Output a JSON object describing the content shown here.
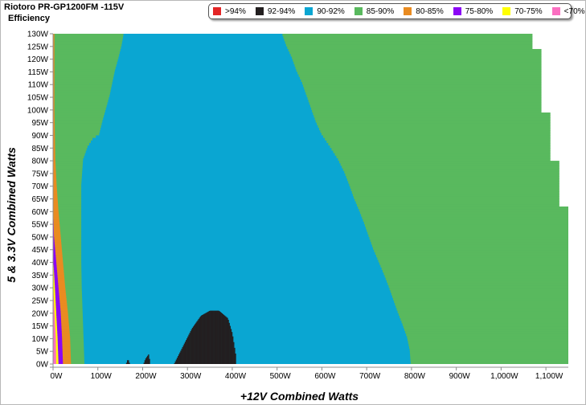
{
  "title": "Riotoro PR-GP1200FM -115V",
  "subtitle": "Efficiency",
  "legend": [
    {
      "label": ">94%",
      "color": "#e32526"
    },
    {
      "label": "92-94%",
      "color": "#231f20"
    },
    {
      "label": "90-92%",
      "color": "#0aa6d2"
    },
    {
      "label": "85-90%",
      "color": "#59b95e"
    },
    {
      "label": "80-85%",
      "color": "#e98b21"
    },
    {
      "label": "75-80%",
      "color": "#8b06f5"
    },
    {
      "label": "70-75%",
      "color": "#ffff00"
    },
    {
      "label": "<70%",
      "color": "#fb6fc1"
    }
  ],
  "chart_data": {
    "type": "heatmap",
    "title": "Riotoro PR-GP1200FM -115V",
    "subtitle": "Efficiency",
    "xlabel": "+12V Combined Watts",
    "ylabel": "5 & 3.3V Combined Watts",
    "xlim": [
      0,
      1150
    ],
    "ylim": [
      0,
      130
    ],
    "x_ticks": [
      "0W",
      "100W",
      "200W",
      "300W",
      "400W",
      "500W",
      "600W",
      "700W",
      "800W",
      "900W",
      "1,000W",
      "1,100W"
    ],
    "y_ticks": [
      "0W",
      "5W",
      "10W",
      "15W",
      "20W",
      "25W",
      "30W",
      "35W",
      "40W",
      "45W",
      "50W",
      "55W",
      "60W",
      "65W",
      "70W",
      "75W",
      "80W",
      "85W",
      "90W",
      "95W",
      "100W",
      "105W",
      "110W",
      "115W",
      "120W",
      "125W",
      "130W"
    ],
    "regions": [
      {
        "band": "85-90%",
        "boundary_max_x": [
          [
            0,
            1150
          ],
          [
            61,
            1150
          ],
          [
            62,
            1130
          ],
          [
            79,
            1130
          ],
          [
            80,
            1110
          ],
          [
            98,
            1110
          ],
          [
            99,
            1090
          ],
          [
            123,
            1090
          ],
          [
            124,
            1070
          ],
          [
            130,
            1070
          ]
        ]
      },
      {
        "band": "80-85%",
        "boundary_max_x": [
          [
            0,
            40
          ],
          [
            10,
            38
          ],
          [
            20,
            33
          ],
          [
            30,
            27
          ],
          [
            40,
            22
          ],
          [
            50,
            17
          ],
          [
            60,
            12
          ],
          [
            70,
            8
          ],
          [
            80,
            5
          ],
          [
            90,
            4
          ],
          [
            100,
            3
          ],
          [
            110,
            3
          ],
          [
            120,
            3
          ],
          [
            130,
            3
          ]
        ]
      },
      {
        "band": "90-92%",
        "boundary_min_x": [
          [
            0,
            70
          ],
          [
            10,
            68
          ],
          [
            20,
            66
          ],
          [
            30,
            64
          ],
          [
            40,
            63
          ],
          [
            50,
            63
          ],
          [
            60,
            63
          ],
          [
            70,
            63
          ],
          [
            80,
            67
          ],
          [
            85,
            77
          ],
          [
            88,
            88
          ],
          [
            90,
            103
          ],
          [
            95,
            110
          ],
          [
            100,
            118
          ],
          [
            105,
            126
          ],
          [
            110,
            132
          ],
          [
            115,
            138
          ],
          [
            120,
            146
          ],
          [
            125,
            153
          ],
          [
            130,
            158
          ]
        ]
      },
      {
        "band": "90-92%",
        "boundary_max_x": [
          [
            0,
            798
          ],
          [
            5,
            796
          ],
          [
            10,
            790
          ],
          [
            15,
            780
          ],
          [
            20,
            769
          ],
          [
            25,
            759
          ],
          [
            30,
            749
          ],
          [
            35,
            738
          ],
          [
            40,
            726
          ],
          [
            45,
            714
          ],
          [
            50,
            704
          ],
          [
            55,
            694
          ],
          [
            60,
            683
          ],
          [
            65,
            671
          ],
          [
            70,
            661
          ],
          [
            75,
            650
          ],
          [
            80,
            636
          ],
          [
            85,
            618
          ],
          [
            90,
            599
          ],
          [
            95,
            586
          ],
          [
            100,
            576
          ],
          [
            105,
            566
          ],
          [
            110,
            556
          ],
          [
            115,
            543
          ],
          [
            120,
            533
          ],
          [
            125,
            520
          ],
          [
            130,
            510
          ]
        ]
      },
      {
        "band": "75-80%",
        "boundary_max_x": [
          [
            0,
            22
          ],
          [
            10,
            20
          ],
          [
            20,
            17
          ],
          [
            30,
            12
          ],
          [
            40,
            7
          ],
          [
            50,
            2
          ],
          [
            57,
            1
          ]
        ]
      },
      {
        "band": "70-75%",
        "boundary_max_x": [
          [
            0,
            12
          ],
          [
            10,
            10
          ],
          [
            20,
            7
          ],
          [
            30,
            4
          ],
          [
            39,
            1
          ]
        ]
      },
      {
        "band": "<70%",
        "boundary_max_x": [
          [
            0,
            7
          ],
          [
            10,
            6
          ],
          [
            20,
            3
          ],
          [
            28,
            1
          ]
        ]
      },
      {
        "band": "92-94%",
        "islands": [
          {
            "x_range": [
              270,
              408
            ],
            "top_y": [
              [
                270,
                0
              ],
              [
                290,
                7
              ],
              [
                310,
                14
              ],
              [
                330,
                19
              ],
              [
                350,
                21
              ],
              [
                370,
                21
              ],
              [
                390,
                18
              ],
              [
                400,
                12
              ],
              [
                408,
                3
              ]
            ]
          },
          {
            "x_range": [
              163,
              171
            ],
            "top_y": [
              [
                163,
                0
              ],
              [
                167,
                2
              ],
              [
                171,
                0
              ]
            ]
          },
          {
            "x_range": [
              202,
              216
            ],
            "top_y": [
              [
                202,
                0
              ],
              [
                206,
                2
              ],
              [
                210,
                3
              ],
              [
                214,
                4
              ],
              [
                216,
                0
              ]
            ]
          }
        ]
      }
    ],
    "grid": false,
    "legend_position": "top-right"
  }
}
